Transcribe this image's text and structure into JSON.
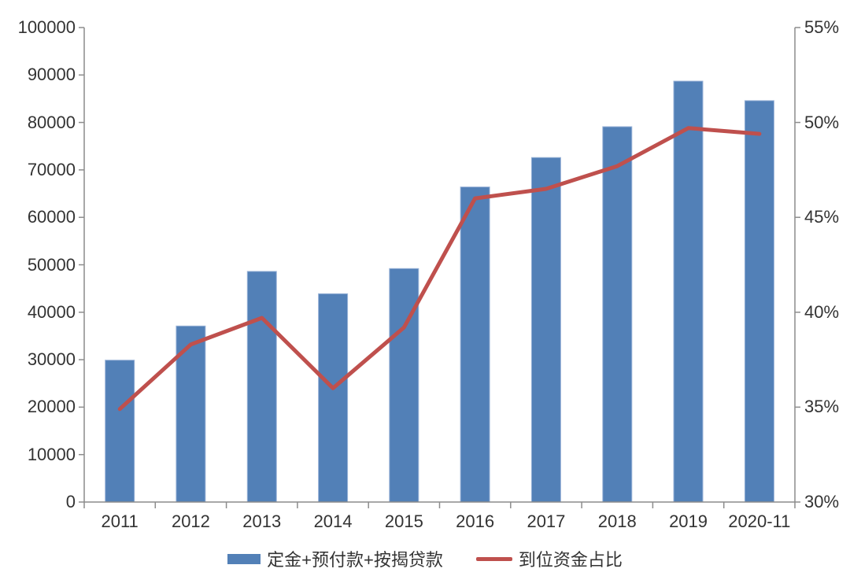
{
  "chart_data": {
    "type": "bar+line",
    "title": "",
    "categories": [
      "2011",
      "2012",
      "2013",
      "2014",
      "2015",
      "2016",
      "2017",
      "2018",
      "2019",
      "2020-11"
    ],
    "series": [
      {
        "name": "定金+预付款+按揭贷款",
        "chart": "bar",
        "axis": "left",
        "color": "#5280B7",
        "border_color": "#9AB3D8",
        "values": [
          29900,
          37100,
          48600,
          43900,
          49200,
          66400,
          72600,
          79100,
          88700,
          84600
        ]
      },
      {
        "name": "到位资金占比",
        "chart": "line",
        "axis": "right",
        "unit": "%",
        "color": "#BF504D",
        "values": [
          34.9,
          38.3,
          39.7,
          36.0,
          39.2,
          46.0,
          46.5,
          47.7,
          49.7,
          49.4
        ]
      }
    ],
    "left_axis": {
      "min": 0,
      "max": 100000,
      "step": 10000,
      "tick_labels": [
        "0",
        "10000",
        "20000",
        "30000",
        "40000",
        "50000",
        "60000",
        "70000",
        "80000",
        "90000",
        "100000"
      ]
    },
    "right_axis": {
      "min": 30,
      "max": 55,
      "step": 5,
      "tick_labels": [
        "30%",
        "35%",
        "40%",
        "45%",
        "50%",
        "55%"
      ]
    },
    "grid": false,
    "legend_position": "bottom",
    "axis_color": "#8C8C8C",
    "text_color": "#333333",
    "background": "#FFFFFF"
  }
}
